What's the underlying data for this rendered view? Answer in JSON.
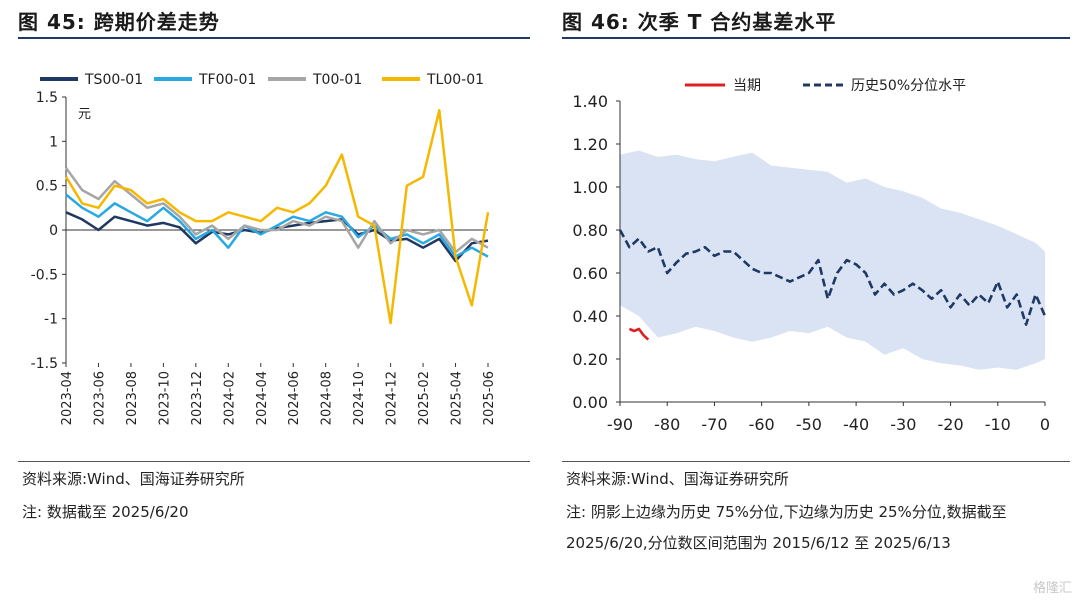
{
  "left": {
    "figure_title": "图 45:  跨期价差走势",
    "source": "资料来源:Wind、国海证券研究所",
    "note": "注:  数据截至 2025/6/20"
  },
  "right": {
    "figure_title": "图 46:  次季 T 合约基差水平",
    "source": "资料来源:Wind、国海证券研究所",
    "note": "注:  阴影上边缘为历史 75%分位,下边缘为历史 25%分位,数据截至 2025/6/20,分位数区间范围为 2015/6/12 至 2025/6/13"
  },
  "watermark": "格隆汇",
  "chart_data": [
    {
      "type": "line",
      "unit_label": "元",
      "ylim": [
        -1.5,
        1.5
      ],
      "yticks": [
        "1.5",
        "1",
        "0.5",
        "0",
        "-0.5",
        "-1",
        "-1.5"
      ],
      "ytick_values": [
        1.5,
        1,
        0.5,
        0,
        -0.5,
        -1,
        -1.5
      ],
      "x_start": "2023-04",
      "x_end": "2025-06",
      "xticks": [
        "2023-04",
        "2023-06",
        "2023-08",
        "2023-10",
        "2023-12",
        "2024-02",
        "2024-04",
        "2024-06",
        "2024-08",
        "2024-10",
        "2024-12",
        "2025-02",
        "2025-04",
        "2025-06"
      ],
      "legend_position": "top",
      "series": [
        {
          "name": "TS00-01",
          "color": "#1f3864",
          "x": [
            "2023-04",
            "2023-05",
            "2023-06",
            "2023-07",
            "2023-08",
            "2023-09",
            "2023-10",
            "2023-11",
            "2023-12",
            "2024-01",
            "2024-02",
            "2024-03",
            "2024-04",
            "2024-05",
            "2024-06",
            "2024-07",
            "2024-08",
            "2024-09",
            "2024-10",
            "2024-11",
            "2024-12",
            "2025-01",
            "2025-02",
            "2025-03",
            "2025-04",
            "2025-05",
            "2025-06"
          ],
          "values": [
            0.2,
            0.12,
            0.0,
            0.15,
            0.1,
            0.05,
            0.08,
            0.03,
            -0.15,
            -0.02,
            -0.05,
            0.0,
            -0.03,
            0.02,
            0.05,
            0.08,
            0.1,
            0.12,
            -0.05,
            0.0,
            -0.12,
            -0.1,
            -0.2,
            -0.1,
            -0.35,
            -0.15,
            -0.12
          ]
        },
        {
          "name": "TF00-01",
          "color": "#29a9e0",
          "x": [
            "2023-04",
            "2023-05",
            "2023-06",
            "2023-07",
            "2023-08",
            "2023-09",
            "2023-10",
            "2023-11",
            "2023-12",
            "2024-01",
            "2024-02",
            "2024-03",
            "2024-04",
            "2024-05",
            "2024-06",
            "2024-07",
            "2024-08",
            "2024-09",
            "2024-10",
            "2024-11",
            "2024-12",
            "2025-01",
            "2025-02",
            "2025-03",
            "2025-04",
            "2025-05",
            "2025-06"
          ],
          "values": [
            0.4,
            0.25,
            0.15,
            0.3,
            0.2,
            0.1,
            0.25,
            0.1,
            -0.1,
            0.0,
            -0.2,
            0.05,
            -0.05,
            0.05,
            0.15,
            0.1,
            0.2,
            0.15,
            -0.08,
            0.05,
            -0.1,
            -0.05,
            -0.15,
            -0.05,
            -0.3,
            -0.2,
            -0.3
          ]
        },
        {
          "name": "T00-01",
          "color": "#a6a6a6",
          "x": [
            "2023-04",
            "2023-05",
            "2023-06",
            "2023-07",
            "2023-08",
            "2023-09",
            "2023-10",
            "2023-11",
            "2023-12",
            "2024-01",
            "2024-02",
            "2024-03",
            "2024-04",
            "2024-05",
            "2024-06",
            "2024-07",
            "2024-08",
            "2024-09",
            "2024-10",
            "2024-11",
            "2024-12",
            "2025-01",
            "2025-02",
            "2025-03",
            "2025-04",
            "2025-05",
            "2025-06"
          ],
          "values": [
            0.7,
            0.45,
            0.35,
            0.55,
            0.4,
            0.25,
            0.3,
            0.15,
            -0.05,
            0.05,
            -0.1,
            0.05,
            0.0,
            0.0,
            0.1,
            0.05,
            0.15,
            0.1,
            -0.2,
            0.1,
            -0.15,
            0.0,
            -0.05,
            0.0,
            -0.25,
            -0.1,
            -0.2
          ]
        },
        {
          "name": "TL00-01",
          "color": "#f5b800",
          "x": [
            "2023-04",
            "2023-05",
            "2023-06",
            "2023-07",
            "2023-08",
            "2023-09",
            "2023-10",
            "2023-11",
            "2023-12",
            "2024-01",
            "2024-02",
            "2024-03",
            "2024-04",
            "2024-05",
            "2024-06",
            "2024-07",
            "2024-08",
            "2024-09",
            "2024-10",
            "2024-11",
            "2024-12",
            "2025-01",
            "2025-02",
            "2025-03",
            "2025-04",
            "2025-05",
            "2025-06"
          ],
          "values": [
            0.6,
            0.3,
            0.25,
            0.5,
            0.45,
            0.3,
            0.35,
            0.2,
            0.1,
            0.1,
            0.2,
            0.15,
            0.1,
            0.25,
            0.2,
            0.3,
            0.5,
            0.85,
            0.15,
            0.05,
            -1.05,
            0.5,
            0.6,
            1.35,
            -0.3,
            -0.85,
            0.2
          ]
        }
      ]
    },
    {
      "type": "area",
      "ylim": [
        0,
        1.4
      ],
      "yticks": [
        "1.40",
        "1.20",
        "1.00",
        "0.80",
        "0.60",
        "0.40",
        "0.20",
        "0.00"
      ],
      "ytick_values": [
        1.4,
        1.2,
        1.0,
        0.8,
        0.6,
        0.4,
        0.2,
        0.0
      ],
      "xlim": [
        -90,
        0
      ],
      "xticks": [
        "-90",
        "-80",
        "-70",
        "-60",
        "-50",
        "-40",
        "-30",
        "-20",
        "-10",
        "0"
      ],
      "xtick_values": [
        -90,
        -80,
        -70,
        -60,
        -50,
        -40,
        -30,
        -20,
        -10,
        0
      ],
      "legend_position": "top",
      "band": {
        "color": "#dae3f3",
        "x": [
          -90,
          -86,
          -82,
          -78,
          -74,
          -70,
          -66,
          -62,
          -58,
          -54,
          -50,
          -46,
          -42,
          -38,
          -34,
          -30,
          -26,
          -22,
          -18,
          -14,
          -10,
          -6,
          -2,
          0
        ],
        "upper": [
          1.15,
          1.17,
          1.14,
          1.15,
          1.13,
          1.12,
          1.14,
          1.16,
          1.1,
          1.09,
          1.08,
          1.07,
          1.02,
          1.04,
          1.0,
          0.98,
          0.95,
          0.9,
          0.88,
          0.85,
          0.82,
          0.78,
          0.74,
          0.7
        ],
        "lower": [
          0.45,
          0.4,
          0.3,
          0.32,
          0.35,
          0.33,
          0.3,
          0.28,
          0.3,
          0.33,
          0.32,
          0.35,
          0.3,
          0.28,
          0.22,
          0.25,
          0.2,
          0.18,
          0.17,
          0.15,
          0.16,
          0.15,
          0.18,
          0.2
        ]
      },
      "series": [
        {
          "name": "当期",
          "color": "#e02020",
          "dash": false,
          "x": [
            -88,
            -87,
            -86,
            -85,
            -84
          ],
          "values": [
            0.34,
            0.33,
            0.34,
            0.31,
            0.29
          ]
        },
        {
          "name": "历史50%分位水平",
          "color": "#1f3864",
          "dash": true,
          "x": [
            -90,
            -88,
            -86,
            -84,
            -82,
            -80,
            -78,
            -76,
            -74,
            -72,
            -70,
            -68,
            -66,
            -64,
            -62,
            -60,
            -58,
            -56,
            -54,
            -52,
            -50,
            -48,
            -46,
            -44,
            -42,
            -40,
            -38,
            -36,
            -34,
            -32,
            -30,
            -28,
            -26,
            -24,
            -22,
            -20,
            -18,
            -16,
            -14,
            -12,
            -10,
            -8,
            -6,
            -4,
            -2,
            0
          ],
          "values": [
            0.8,
            0.72,
            0.76,
            0.7,
            0.72,
            0.6,
            0.65,
            0.69,
            0.7,
            0.72,
            0.68,
            0.7,
            0.7,
            0.66,
            0.62,
            0.6,
            0.6,
            0.58,
            0.56,
            0.58,
            0.6,
            0.66,
            0.48,
            0.6,
            0.66,
            0.64,
            0.6,
            0.5,
            0.55,
            0.5,
            0.52,
            0.55,
            0.52,
            0.48,
            0.52,
            0.44,
            0.5,
            0.45,
            0.5,
            0.46,
            0.56,
            0.44,
            0.5,
            0.36,
            0.5,
            0.4
          ]
        }
      ]
    }
  ]
}
